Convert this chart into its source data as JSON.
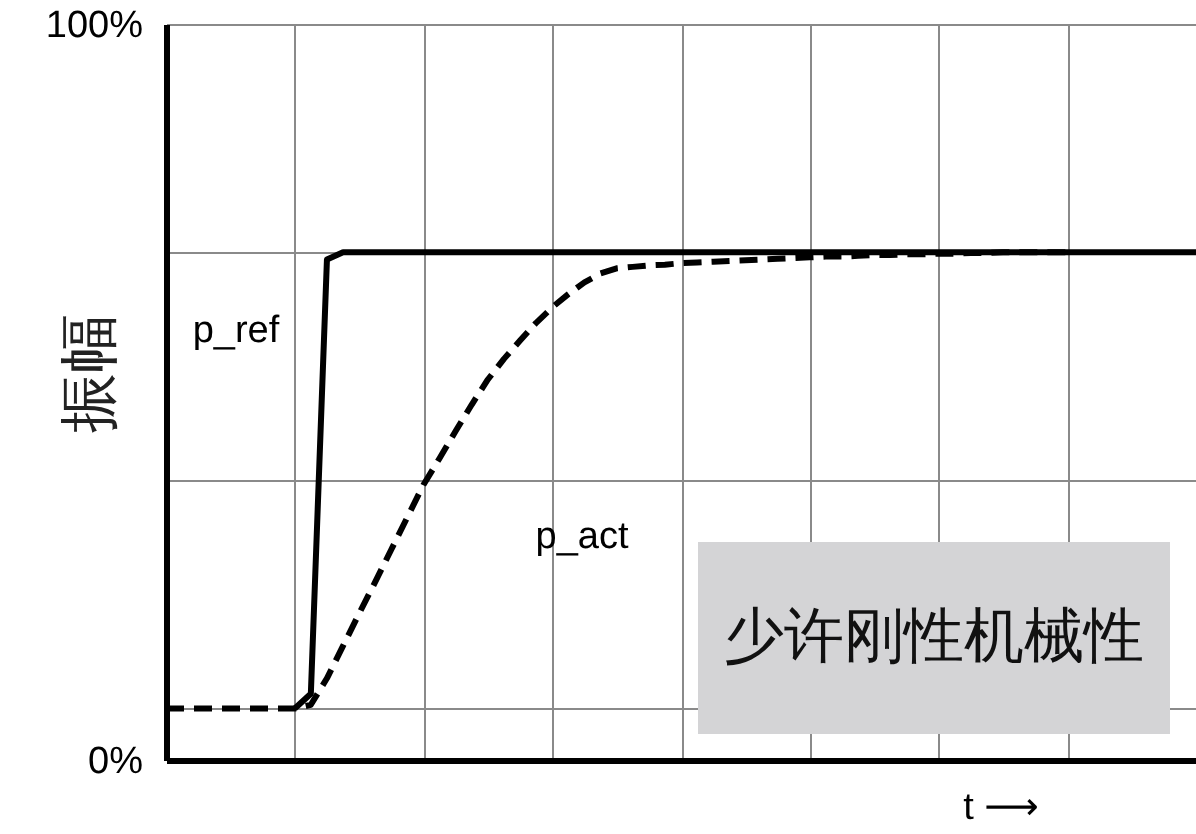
{
  "chart_data": {
    "type": "line",
    "xlabel": "t ⟶",
    "ylabel": "振幅",
    "categories": [
      null,
      null,
      null,
      null,
      null,
      null,
      null,
      null,
      null,
      null,
      null,
      null,
      null,
      null,
      null,
      null,
      null,
      null,
      null,
      null,
      null,
      null,
      null,
      null,
      null,
      null,
      null,
      null,
      null,
      null,
      null,
      null,
      null,
      null,
      null,
      null,
      null,
      null,
      null,
      null,
      null,
      null,
      null,
      null,
      null,
      null,
      null,
      null,
      null,
      null,
      null,
      null,
      null,
      null,
      null,
      null,
      null,
      null,
      null,
      null,
      null,
      null,
      null,
      null,
      null
    ],
    "ylim": [
      0,
      100
    ],
    "yticks": [
      {
        "value": 0,
        "label": "0%"
      },
      {
        "value": 7,
        "label": null
      },
      {
        "value": 38,
        "label": null
      },
      {
        "value": 69,
        "label": null
      },
      {
        "value": 100,
        "label": "100%"
      }
    ],
    "grid": true,
    "tick_labels": "y",
    "series": [
      {
        "name": "p_ref",
        "color": "#000000",
        "line_style": "solid",
        "values": [
          null,
          null,
          null,
          null,
          null,
          null,
          null,
          null,
          7,
          9,
          68,
          69,
          69,
          69,
          69,
          69,
          69,
          69,
          69,
          69,
          69,
          69,
          69,
          69,
          69,
          69,
          69,
          69,
          69,
          69,
          69,
          69,
          69,
          69,
          69,
          69,
          69,
          69,
          69,
          69,
          69,
          69,
          69,
          69,
          69,
          69,
          69,
          69,
          69,
          69,
          69,
          69,
          69,
          69,
          69,
          69,
          69,
          69,
          69,
          69,
          69,
          69,
          69,
          69,
          69
        ]
      },
      {
        "name": "p_act",
        "color": "#000000",
        "line_style": "dashed",
        "values": [
          7,
          7,
          7,
          7,
          7,
          7,
          7,
          7,
          7,
          7.5,
          11.1,
          15.5,
          19.9,
          24.2,
          28.6,
          33.0,
          37.4,
          41.0,
          44.7,
          48.3,
          51.7,
          54.5,
          57.0,
          59.4,
          61.5,
          63.3,
          64.9,
          66.1,
          66.8,
          67.0,
          67.2,
          67.3,
          67.5,
          67.6,
          67.7,
          67.8,
          67.9,
          68.0,
          68.1,
          68.2,
          68.3,
          68.4,
          68.4,
          68.5,
          68.6,
          68.6,
          68.7,
          68.7,
          68.8,
          68.8,
          68.9,
          68.9,
          69,
          69,
          69,
          69,
          69,
          null,
          null,
          null,
          null,
          null,
          null,
          null,
          null
        ]
      }
    ],
    "annotations": [
      "少许刚性机械性"
    ]
  }
}
